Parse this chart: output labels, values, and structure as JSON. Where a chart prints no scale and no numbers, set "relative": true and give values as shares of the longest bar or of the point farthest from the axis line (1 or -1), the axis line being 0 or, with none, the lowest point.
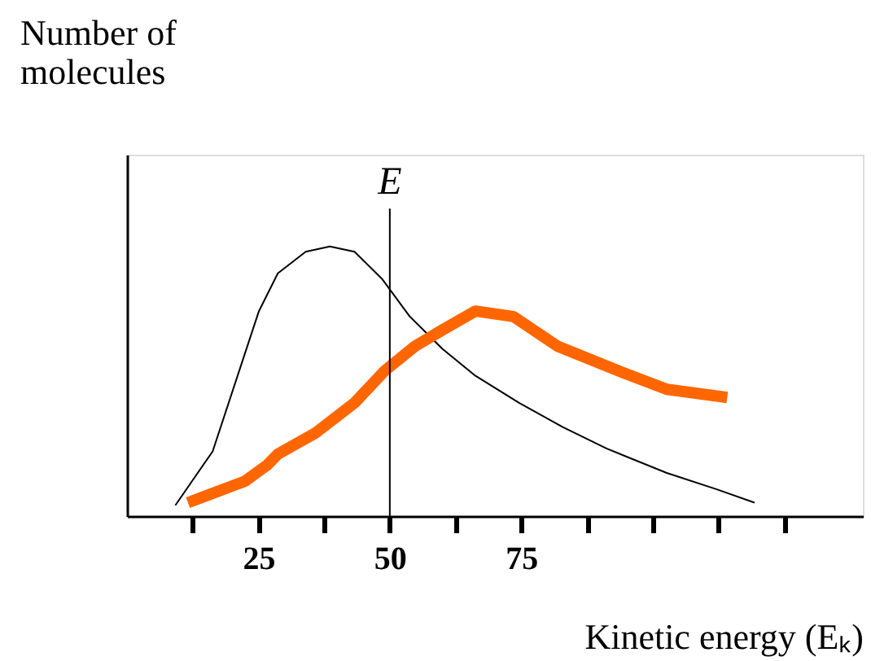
{
  "chart_data": {
    "type": "line",
    "relative": true,
    "ylabel": "Number of molecules",
    "xlabel": "Kinetic energy (Eₖ)",
    "xlim": [
      0,
      140
    ],
    "xticks": [
      {
        "value": 12.5,
        "label": null
      },
      25,
      {
        "value": 37.5,
        "label": null
      },
      50,
      {
        "value": 62.5,
        "label": null
      },
      75,
      {
        "value": 87.5,
        "label": null
      },
      {
        "value": 100,
        "label": null
      },
      {
        "value": 112.5,
        "label": null
      },
      {
        "value": 125,
        "label": null
      }
    ],
    "tick_labels": "x",
    "grid": false,
    "line_style": "solid",
    "marker": "none",
    "ref_lines": [
      {
        "axis": "x",
        "value": 50,
        "label": "E",
        "color": "#000000"
      }
    ],
    "series": [
      {
        "color": "#000000",
        "x": [
          9.2,
          16.3,
          25.1,
          28.7,
          34.0,
          38.6,
          43.3,
          48.5,
          53.8,
          60,
          66.3,
          74.6,
          82.9,
          91.3,
          102.7,
          112.1,
          119.4
        ],
        "values": [
          0.04,
          0.24,
          0.76,
          0.9,
          0.98,
          1.0,
          0.98,
          0.88,
          0.74,
          0.62,
          0.52,
          0.42,
          0.33,
          0.25,
          0.16,
          0.1,
          0.05
        ]
      },
      {
        "color": "#ff6600",
        "x": [
          11.6,
          22.5,
          26.7,
          28.7,
          36.0,
          43.3,
          49.1,
          54.8,
          60,
          66.3,
          73.5,
          81.9,
          93.3,
          102.7,
          114.2
        ],
        "values": [
          0.05,
          0.13,
          0.19,
          0.23,
          0.31,
          0.42,
          0.54,
          0.63,
          0.69,
          0.76,
          0.74,
          0.63,
          0.54,
          0.47,
          0.44
        ]
      }
    ]
  }
}
